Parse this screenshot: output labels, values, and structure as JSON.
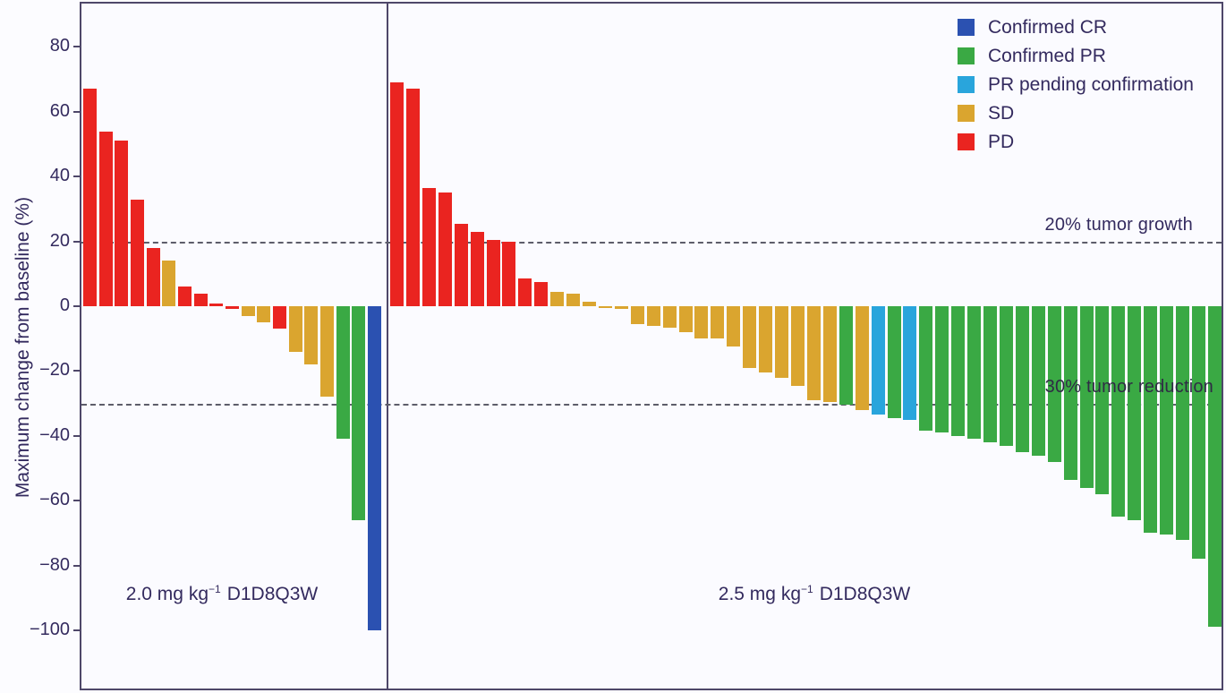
{
  "figure_title": "",
  "chart_data": {
    "type": "bar",
    "subtype": "waterfall",
    "title": "",
    "xlabel": "",
    "ylabel": "Maximum change from baseline (%)",
    "ylim": [
      -118,
      93
    ],
    "grid": false,
    "legend_position": "top-right",
    "yticks": [
      {
        "value": 80,
        "label": "80"
      },
      {
        "value": 60,
        "label": "60"
      },
      {
        "value": 40,
        "label": "40"
      },
      {
        "value": 20,
        "label": "20"
      },
      {
        "value": 0,
        "label": "0"
      },
      {
        "value": -20,
        "label": "−20"
      },
      {
        "value": -40,
        "label": "−40"
      },
      {
        "value": -60,
        "label": "−60"
      },
      {
        "value": -80,
        "label": "−80"
      },
      {
        "value": -100,
        "label": "−100"
      }
    ],
    "reference_lines": [
      {
        "y": 20,
        "label": "20% tumor growth"
      },
      {
        "y": -30,
        "label": "30% tumor reduction"
      }
    ],
    "colors": {
      "CR": "#2b51b1",
      "PR": "#3aa944",
      "PRP": "#29a5dc",
      "SD": "#daa52f",
      "PD": "#ea2420"
    },
    "legend": [
      {
        "key": "CR",
        "label": "Confirmed CR"
      },
      {
        "key": "PR",
        "label": "Confirmed PR"
      },
      {
        "key": "PRP",
        "label": "PR pending confirmation"
      },
      {
        "key": "SD",
        "label": "SD"
      },
      {
        "key": "PD",
        "label": "PD"
      }
    ],
    "groups": [
      {
        "label_prefix": "2.0 mg kg",
        "label_sup": "−1",
        "label_suffix": "D1D8Q3W",
        "bars": [
          {
            "value": 67,
            "status": "PD"
          },
          {
            "value": 54,
            "status": "PD"
          },
          {
            "value": 51,
            "status": "PD"
          },
          {
            "value": 33,
            "status": "PD"
          },
          {
            "value": 18,
            "status": "PD"
          },
          {
            "value": 14,
            "status": "SD"
          },
          {
            "value": 6,
            "status": "PD"
          },
          {
            "value": 4,
            "status": "PD"
          },
          {
            "value": 0.8,
            "status": "PD"
          },
          {
            "value": -0.8,
            "status": "PD"
          },
          {
            "value": -3,
            "status": "SD"
          },
          {
            "value": -5,
            "status": "SD"
          },
          {
            "value": -7,
            "status": "PD"
          },
          {
            "value": -14,
            "status": "SD"
          },
          {
            "value": -18,
            "status": "SD"
          },
          {
            "value": -28,
            "status": "SD"
          },
          {
            "value": -41,
            "status": "PR"
          },
          {
            "value": -66,
            "status": "PR"
          },
          {
            "value": -100,
            "status": "CR"
          }
        ]
      },
      {
        "label_prefix": "2.5 mg kg",
        "label_sup": "−1",
        "label_suffix": "D1D8Q3W",
        "bars": [
          {
            "value": 69,
            "status": "PD"
          },
          {
            "value": 67,
            "status": "PD"
          },
          {
            "value": 36.5,
            "status": "PD"
          },
          {
            "value": 35,
            "status": "PD"
          },
          {
            "value": 25.5,
            "status": "PD"
          },
          {
            "value": 23,
            "status": "PD"
          },
          {
            "value": 20.5,
            "status": "PD"
          },
          {
            "value": 20,
            "status": "PD"
          },
          {
            "value": 8.5,
            "status": "PD"
          },
          {
            "value": 7.5,
            "status": "PD"
          },
          {
            "value": 4.5,
            "status": "SD"
          },
          {
            "value": 4,
            "status": "SD"
          },
          {
            "value": 1.5,
            "status": "SD"
          },
          {
            "value": -0.5,
            "status": "SD"
          },
          {
            "value": -0.7,
            "status": "SD"
          },
          {
            "value": -5.5,
            "status": "SD"
          },
          {
            "value": -6,
            "status": "SD"
          },
          {
            "value": -6.5,
            "status": "SD"
          },
          {
            "value": -8,
            "status": "SD"
          },
          {
            "value": -10,
            "status": "SD"
          },
          {
            "value": -10,
            "status": "SD"
          },
          {
            "value": -12.5,
            "status": "SD"
          },
          {
            "value": -19,
            "status": "SD"
          },
          {
            "value": -20.5,
            "status": "SD"
          },
          {
            "value": -22,
            "status": "SD"
          },
          {
            "value": -24.5,
            "status": "SD"
          },
          {
            "value": -29,
            "status": "SD"
          },
          {
            "value": -29.5,
            "status": "SD"
          },
          {
            "value": -30.5,
            "status": "PR"
          },
          {
            "value": -32,
            "status": "SD"
          },
          {
            "value": -33.5,
            "status": "PRP"
          },
          {
            "value": -34.5,
            "status": "PR"
          },
          {
            "value": -35,
            "status": "PRP"
          },
          {
            "value": -38.5,
            "status": "PR"
          },
          {
            "value": -39,
            "status": "PR"
          },
          {
            "value": -40,
            "status": "PR"
          },
          {
            "value": -41,
            "status": "PR"
          },
          {
            "value": -42,
            "status": "PR"
          },
          {
            "value": -43,
            "status": "PR"
          },
          {
            "value": -45,
            "status": "PR"
          },
          {
            "value": -46,
            "status": "PR"
          },
          {
            "value": -48,
            "status": "PR"
          },
          {
            "value": -53.5,
            "status": "PR"
          },
          {
            "value": -56,
            "status": "PR"
          },
          {
            "value": -58,
            "status": "PR"
          },
          {
            "value": -65,
            "status": "PR"
          },
          {
            "value": -66,
            "status": "PR"
          },
          {
            "value": -70,
            "status": "PR"
          },
          {
            "value": -70.5,
            "status": "PR"
          },
          {
            "value": -72,
            "status": "PR"
          },
          {
            "value": -78,
            "status": "PR"
          },
          {
            "value": -99,
            "status": "PR"
          }
        ]
      }
    ]
  }
}
